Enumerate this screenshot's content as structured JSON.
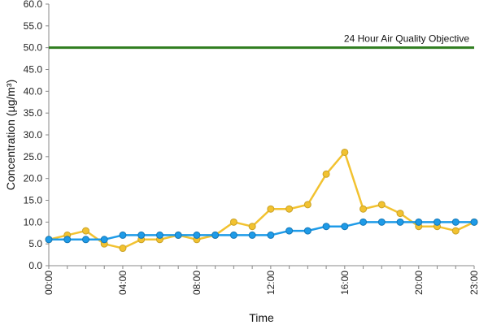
{
  "chart_data": {
    "type": "line",
    "title": "",
    "xlabel": "Time",
    "ylabel": "Concentration (µg/m³)",
    "ylim": [
      0,
      60
    ],
    "yticks": [
      "0.0",
      "5.0",
      "10.0",
      "15.0",
      "20.0",
      "25.0",
      "30.0",
      "35.0",
      "40.0",
      "45.0",
      "50.0",
      "55.0",
      "60.0"
    ],
    "xlim": [
      0,
      23
    ],
    "xticks": [
      {
        "value": 0,
        "label": "00:00"
      },
      {
        "value": 4,
        "label": "04:00"
      },
      {
        "value": 8,
        "label": "08:00"
      },
      {
        "value": 12,
        "label": "12:00"
      },
      {
        "value": 16,
        "label": "16:00"
      },
      {
        "value": 20,
        "label": "20:00"
      },
      {
        "value": 23,
        "label": "23:00"
      }
    ],
    "x": [
      0,
      1,
      2,
      3,
      4,
      5,
      6,
      7,
      8,
      9,
      10,
      11,
      12,
      13,
      14,
      15,
      16,
      17,
      18,
      19,
      20,
      21,
      22,
      23
    ],
    "series": [
      {
        "color": "#f2c230",
        "marker_fill": "#f2c230",
        "values": [
          6,
          7,
          8,
          5,
          4,
          6,
          6,
          7,
          6,
          7,
          10,
          9,
          13,
          13,
          14,
          21,
          26,
          13,
          14,
          12,
          9,
          9,
          8,
          10
        ]
      },
      {
        "color": "#1e9be8",
        "marker_fill": "#1e9be8",
        "values": [
          6,
          6,
          6,
          6,
          7,
          7,
          7,
          7,
          7,
          7,
          7,
          7,
          7,
          8,
          8,
          9,
          9,
          10,
          10,
          10,
          10,
          10,
          10,
          10
        ]
      }
    ],
    "reference_line": {
      "value": 50,
      "label": "24 Hour Air Quality Objective",
      "color": "#2f7d1f"
    },
    "grid": false,
    "legend": "none"
  }
}
